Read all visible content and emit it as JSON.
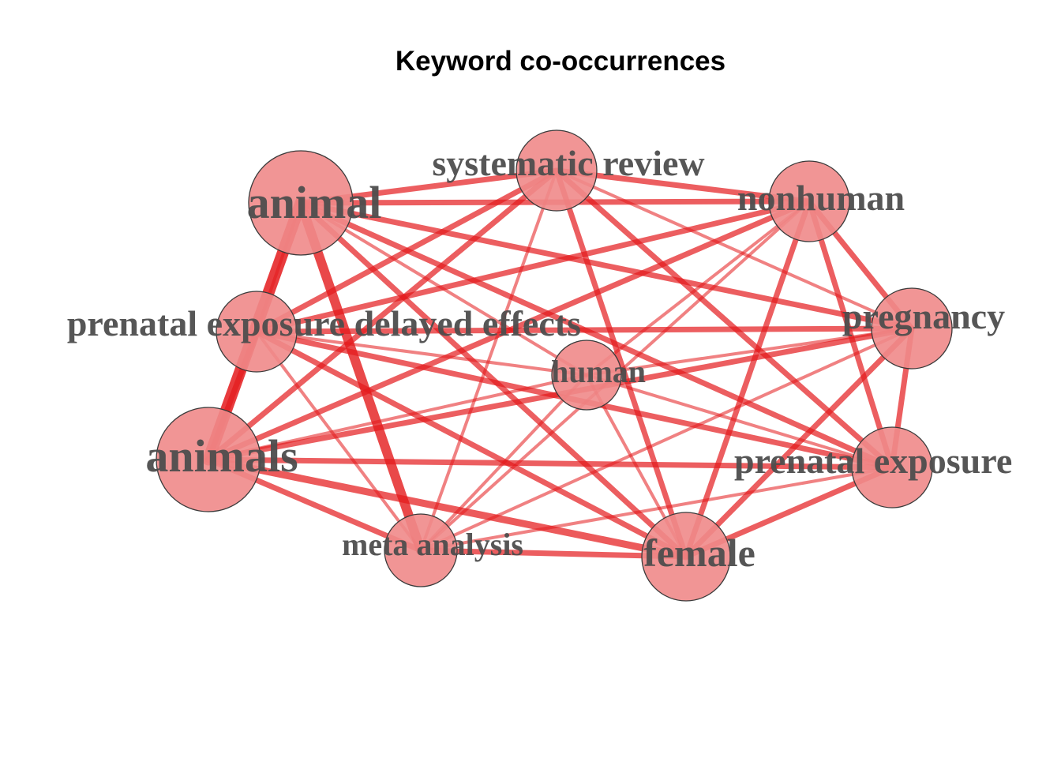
{
  "title": "Keyword co-occurrences",
  "colors": {
    "edge": "#e41a1c",
    "node_fill": "#f08a8a",
    "node_stroke": "#3a3a3a",
    "label": "#4d4d4d"
  },
  "nodes": [
    {
      "id": "animal",
      "label": "animal",
      "weight": 5
    },
    {
      "id": "systematic_review",
      "label": "systematic review",
      "weight": 4
    },
    {
      "id": "nonhuman",
      "label": "nonhuman",
      "weight": 4
    },
    {
      "id": "pregnancy",
      "label": "pregnancy",
      "weight": 4
    },
    {
      "id": "prenatal_exposure_delayed_effects",
      "label": "prenatal exposure delayed effects",
      "weight": 4
    },
    {
      "id": "human",
      "label": "human",
      "weight": 3
    },
    {
      "id": "animals",
      "label": "animals",
      "weight": 5
    },
    {
      "id": "prenatal_exposure",
      "label": "prenatal exposure",
      "weight": 4
    },
    {
      "id": "meta_analysis",
      "label": "meta analysis",
      "weight": 3
    },
    {
      "id": "female",
      "label": "female",
      "weight": 4
    }
  ],
  "edges": [
    {
      "source": "animal",
      "target": "animals",
      "weight": 5
    },
    {
      "source": "animal",
      "target": "meta_analysis",
      "weight": 4
    },
    {
      "source": "animal",
      "target": "systematic_review",
      "weight": 2
    },
    {
      "source": "animal",
      "target": "nonhuman",
      "weight": 2
    },
    {
      "source": "animal",
      "target": "pregnancy",
      "weight": 2
    },
    {
      "source": "animal",
      "target": "prenatal_exposure",
      "weight": 2
    },
    {
      "source": "animal",
      "target": "female",
      "weight": 2
    },
    {
      "source": "animal",
      "target": "human",
      "weight": 1
    },
    {
      "source": "animal",
      "target": "prenatal_exposure_delayed_effects",
      "weight": 1
    },
    {
      "source": "systematic_review",
      "target": "nonhuman",
      "weight": 2
    },
    {
      "source": "systematic_review",
      "target": "prenatal_exposure_delayed_effects",
      "weight": 2
    },
    {
      "source": "systematic_review",
      "target": "animals",
      "weight": 2
    },
    {
      "source": "systematic_review",
      "target": "female",
      "weight": 2
    },
    {
      "source": "systematic_review",
      "target": "prenatal_exposure",
      "weight": 2
    },
    {
      "source": "systematic_review",
      "target": "pregnancy",
      "weight": 1
    },
    {
      "source": "systematic_review",
      "target": "meta_analysis",
      "weight": 1
    },
    {
      "source": "nonhuman",
      "target": "pregnancy",
      "weight": 2
    },
    {
      "source": "nonhuman",
      "target": "prenatal_exposure",
      "weight": 2
    },
    {
      "source": "nonhuman",
      "target": "female",
      "weight": 2
    },
    {
      "source": "nonhuman",
      "target": "animals",
      "weight": 2
    },
    {
      "source": "nonhuman",
      "target": "prenatal_exposure_delayed_effects",
      "weight": 2
    },
    {
      "source": "nonhuman",
      "target": "meta_analysis",
      "weight": 1
    },
    {
      "source": "nonhuman",
      "target": "human",
      "weight": 1
    },
    {
      "source": "pregnancy",
      "target": "prenatal_exposure",
      "weight": 2
    },
    {
      "source": "pregnancy",
      "target": "female",
      "weight": 2
    },
    {
      "source": "pregnancy",
      "target": "animals",
      "weight": 2
    },
    {
      "source": "pregnancy",
      "target": "prenatal_exposure_delayed_effects",
      "weight": 2
    },
    {
      "source": "pregnancy",
      "target": "meta_analysis",
      "weight": 1
    },
    {
      "source": "pregnancy",
      "target": "human",
      "weight": 1
    },
    {
      "source": "prenatal_exposure_delayed_effects",
      "target": "animals",
      "weight": 2
    },
    {
      "source": "prenatal_exposure_delayed_effects",
      "target": "female",
      "weight": 2
    },
    {
      "source": "prenatal_exposure_delayed_effects",
      "target": "prenatal_exposure",
      "weight": 2
    },
    {
      "source": "prenatal_exposure_delayed_effects",
      "target": "meta_analysis",
      "weight": 1
    },
    {
      "source": "prenatal_exposure_delayed_effects",
      "target": "human",
      "weight": 1
    },
    {
      "source": "animals",
      "target": "female",
      "weight": 3
    },
    {
      "source": "animals",
      "target": "prenatal_exposure",
      "weight": 2
    },
    {
      "source": "animals",
      "target": "meta_analysis",
      "weight": 2
    },
    {
      "source": "animals",
      "target": "human",
      "weight": 1
    },
    {
      "source": "female",
      "target": "prenatal_exposure",
      "weight": 2
    },
    {
      "source": "female",
      "target": "meta_analysis",
      "weight": 2
    },
    {
      "source": "female",
      "target": "human",
      "weight": 1
    },
    {
      "source": "meta_analysis",
      "target": "prenatal_exposure",
      "weight": 1
    },
    {
      "source": "meta_analysis",
      "target": "human",
      "weight": 1
    },
    {
      "source": "human",
      "target": "prenatal_exposure",
      "weight": 1
    }
  ]
}
